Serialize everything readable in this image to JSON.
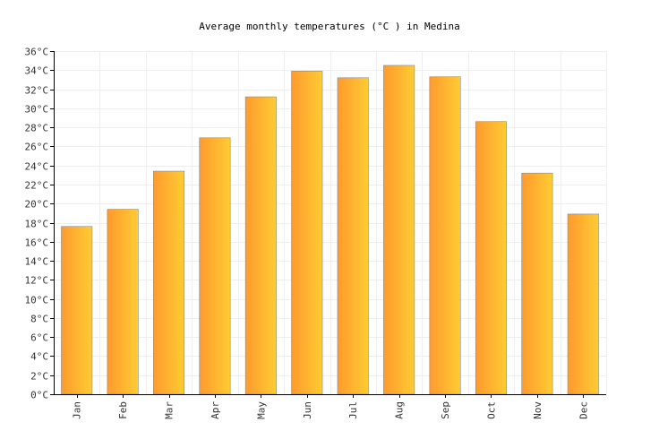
{
  "chart_data": {
    "type": "bar",
    "title": "Average monthly temperatures (°C ) in Medina",
    "xlabel": "",
    "ylabel": "",
    "categories": [
      "Jan",
      "Feb",
      "Mar",
      "Apr",
      "May",
      "Jun",
      "Jul",
      "Aug",
      "Sep",
      "Oct",
      "Nov",
      "Dec"
    ],
    "values": [
      17.6,
      19.4,
      23.4,
      26.9,
      31.2,
      33.9,
      33.2,
      34.5,
      33.3,
      28.6,
      23.2,
      18.9
    ],
    "ylim": [
      0,
      36
    ],
    "ytick_step": 2,
    "ytick_unit": "°C",
    "grid": true,
    "legend": "none",
    "colors": {
      "bar_start": "#FF9A2E",
      "bar_end": "#FFCC33",
      "bar_stroke": "#888888",
      "grid": "#eeeeee",
      "axis": "#000000"
    }
  }
}
